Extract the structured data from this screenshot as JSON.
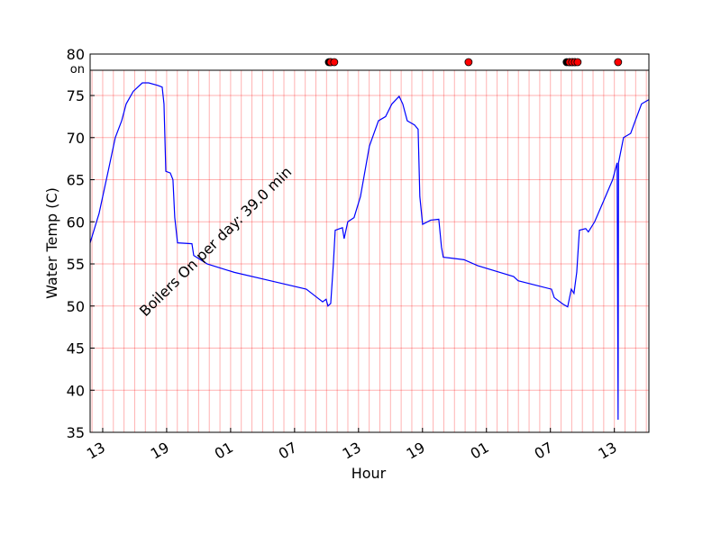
{
  "chart_data": [
    {
      "type": "line",
      "x_label": "Hour",
      "y_label": "Water Temp (C)",
      "annotation": "Boilers On per day: 39.0 min",
      "xlim": [
        11.82,
        64.24
      ],
      "ylim": [
        35,
        78
      ],
      "xticks": [
        13,
        19,
        {
          "value": 25,
          "label": "01"
        },
        {
          "value": 31,
          "label": "07"
        },
        {
          "value": 37,
          "label": "13"
        },
        {
          "value": 43,
          "label": "19"
        },
        {
          "value": 49,
          "label": "01"
        },
        {
          "value": 55,
          "label": "07"
        },
        {
          "value": 61,
          "label": "13"
        }
      ],
      "xminorticks": [
        12,
        13,
        14,
        15,
        16,
        17,
        18,
        19,
        20,
        21,
        22,
        23,
        24,
        25,
        26,
        27,
        28,
        29,
        30,
        31,
        32,
        33,
        34,
        35,
        36,
        37,
        38,
        39,
        40,
        41,
        42,
        43,
        44,
        45,
        46,
        47,
        48,
        49,
        50,
        51,
        52,
        53,
        54,
        55,
        56,
        57,
        58,
        59,
        60,
        61,
        62,
        63,
        64
      ],
      "yticks": [
        35,
        40,
        45,
        50,
        55,
        60,
        65,
        70,
        75
      ],
      "grid": true,
      "grid_color": "#ff0000",
      "series": [
        {
          "color": "#0000ff",
          "x": [
            11.82,
            12.66,
            13.51,
            14.18,
            14.78,
            15.2,
            15.87,
            16.72,
            17.31,
            18.16,
            18.58,
            18.75,
            18.92,
            19.34,
            19.59,
            19.76,
            20.02,
            21.37,
            21.54,
            22.81,
            25.34,
            28.72,
            32.1,
            33.12,
            33.63,
            33.96,
            34.13,
            34.39,
            34.64,
            34.81,
            35.49,
            35.65,
            35.99,
            36.58,
            37.18,
            38.02,
            38.87,
            39.54,
            40.13,
            40.81,
            41.15,
            41.57,
            42.25,
            42.59,
            42.75,
            43.01,
            43.77,
            44.53,
            44.78,
            44.95,
            45.63,
            46.9,
            48.17,
            51.55,
            51.97,
            55.1,
            55.36,
            56.2,
            56.62,
            56.96,
            57.21,
            57.47,
            57.72,
            58.31,
            58.56,
            59.15,
            60.0,
            60.84,
            61.26,
            61.35,
            61.39,
            61.86,
            62.53,
            62.96,
            63.55,
            64.22
          ],
          "values": [
            57.5,
            61,
            66,
            70,
            72,
            74,
            75.5,
            76.5,
            76.5,
            76.2,
            76,
            74,
            66,
            65.8,
            65,
            60.5,
            57.5,
            57.4,
            56,
            55,
            54,
            53,
            52,
            51,
            50.5,
            50.8,
            50,
            50.3,
            55,
            59,
            59.3,
            58,
            60,
            60.5,
            63,
            69,
            72,
            72.5,
            74,
            74.9,
            74,
            72,
            71.5,
            71,
            63,
            59.7,
            60.2,
            60.3,
            57,
            55.8,
            55.7,
            55.5,
            54.8,
            53.5,
            53,
            52,
            51,
            50.2,
            49.9,
            52,
            51.5,
            54,
            59,
            59.2,
            58.8,
            60,
            62.5,
            65,
            67,
            36.5,
            67,
            70,
            70.5,
            72,
            74,
            74.5
          ]
        }
      ]
    },
    {
      "type": "events",
      "xlim": [
        11.82,
        64.24
      ],
      "ytick_labels": [
        "80",
        "on"
      ],
      "series": [
        {
          "color": "#000000",
          "x": [
            34.22,
            34.39,
            56.53,
            56.79,
            57.04,
            57.3
          ]
        },
        {
          "color": "#ff0000",
          "x": [
            34.39,
            34.72,
            47.32,
            56.79,
            57.04,
            57.3,
            57.55,
            61.35
          ]
        }
      ]
    }
  ]
}
